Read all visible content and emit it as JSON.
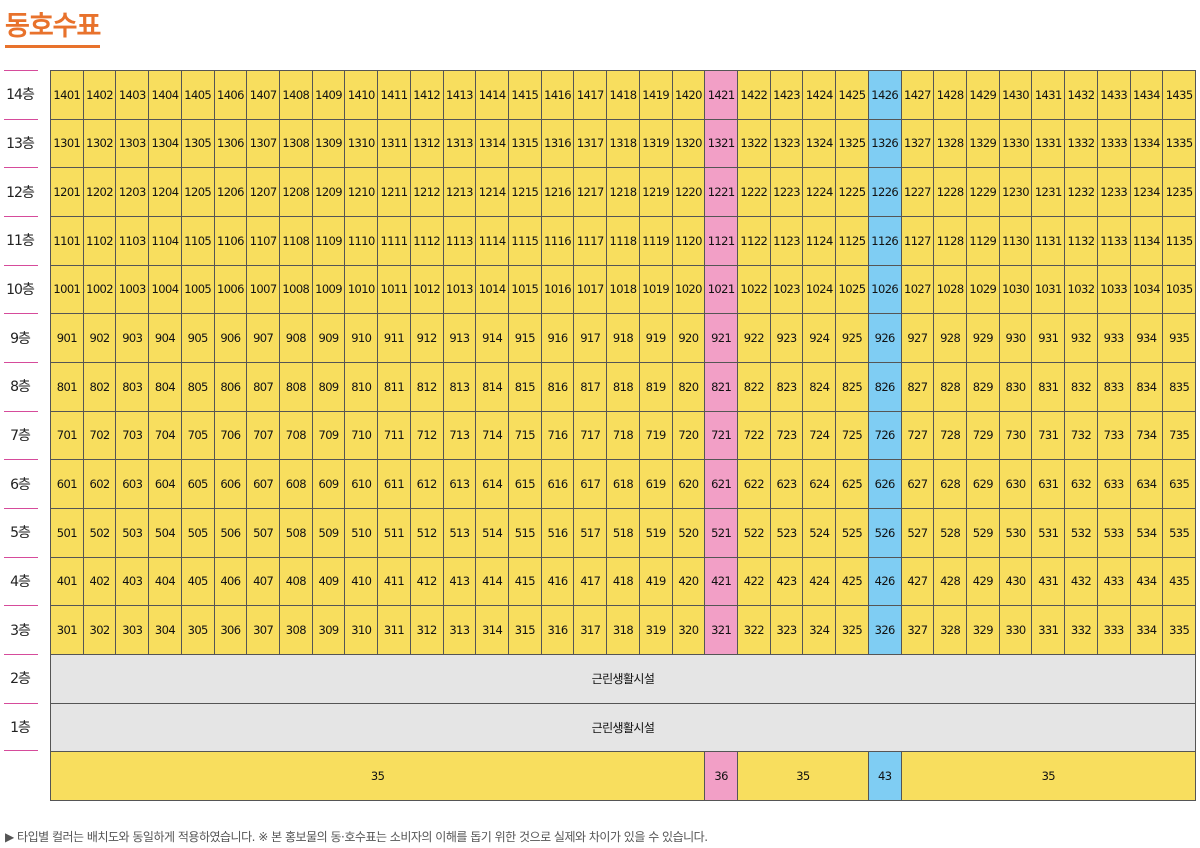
{
  "title": "동호수표",
  "colors": {
    "35": "#f8de5e",
    "36": "#f29fc6",
    "43": "#7fcdf3",
    "facility": "#e5e5e5",
    "title": "#e8722c"
  },
  "unit_floors": [
    {
      "label": "14층",
      "units": [
        "1401",
        "1402",
        "1403",
        "1404",
        "1405",
        "1406",
        "1407",
        "1408",
        "1409",
        "1410",
        "1411",
        "1412",
        "1413",
        "1414",
        "1415",
        "1416",
        "1417",
        "1418",
        "1419",
        "1420",
        "1421",
        "1422",
        "1423",
        "1424",
        "1425",
        "1426",
        "1427",
        "1428",
        "1429",
        "1430",
        "1431",
        "1432",
        "1433",
        "1434",
        "1435"
      ]
    },
    {
      "label": "13층",
      "units": [
        "1301",
        "1302",
        "1303",
        "1304",
        "1305",
        "1306",
        "1307",
        "1308",
        "1309",
        "1310",
        "1311",
        "1312",
        "1313",
        "1314",
        "1315",
        "1316",
        "1317",
        "1318",
        "1319",
        "1320",
        "1321",
        "1322",
        "1323",
        "1324",
        "1325",
        "1326",
        "1327",
        "1328",
        "1329",
        "1330",
        "1331",
        "1332",
        "1333",
        "1334",
        "1335"
      ]
    },
    {
      "label": "12층",
      "units": [
        "1201",
        "1202",
        "1203",
        "1204",
        "1205",
        "1206",
        "1207",
        "1208",
        "1209",
        "1210",
        "1211",
        "1212",
        "1213",
        "1214",
        "1215",
        "1216",
        "1217",
        "1218",
        "1219",
        "1220",
        "1221",
        "1222",
        "1223",
        "1224",
        "1225",
        "1226",
        "1227",
        "1228",
        "1229",
        "1230",
        "1231",
        "1232",
        "1233",
        "1234",
        "1235"
      ]
    },
    {
      "label": "11층",
      "units": [
        "1101",
        "1102",
        "1103",
        "1104",
        "1105",
        "1106",
        "1107",
        "1108",
        "1109",
        "1110",
        "1111",
        "1112",
        "1113",
        "1114",
        "1115",
        "1116",
        "1117",
        "1118",
        "1119",
        "1120",
        "1121",
        "1122",
        "1123",
        "1124",
        "1125",
        "1126",
        "1127",
        "1128",
        "1129",
        "1130",
        "1131",
        "1132",
        "1133",
        "1134",
        "1135"
      ]
    },
    {
      "label": "10층",
      "units": [
        "1001",
        "1002",
        "1003",
        "1004",
        "1005",
        "1006",
        "1007",
        "1008",
        "1009",
        "1010",
        "1011",
        "1012",
        "1013",
        "1014",
        "1015",
        "1016",
        "1017",
        "1018",
        "1019",
        "1020",
        "1021",
        "1022",
        "1023",
        "1024",
        "1025",
        "1026",
        "1027",
        "1028",
        "1029",
        "1030",
        "1031",
        "1032",
        "1033",
        "1034",
        "1035"
      ]
    },
    {
      "label": "9층",
      "units": [
        "901",
        "902",
        "903",
        "904",
        "905",
        "906",
        "907",
        "908",
        "909",
        "910",
        "911",
        "912",
        "913",
        "914",
        "915",
        "916",
        "917",
        "918",
        "919",
        "920",
        "921",
        "922",
        "923",
        "924",
        "925",
        "926",
        "927",
        "928",
        "929",
        "930",
        "931",
        "932",
        "933",
        "934",
        "935"
      ]
    },
    {
      "label": "8층",
      "units": [
        "801",
        "802",
        "803",
        "804",
        "805",
        "806",
        "807",
        "808",
        "809",
        "810",
        "811",
        "812",
        "813",
        "814",
        "815",
        "816",
        "817",
        "818",
        "819",
        "820",
        "821",
        "822",
        "823",
        "824",
        "825",
        "826",
        "827",
        "828",
        "829",
        "830",
        "831",
        "832",
        "833",
        "834",
        "835"
      ]
    },
    {
      "label": "7층",
      "units": [
        "701",
        "702",
        "703",
        "704",
        "705",
        "706",
        "707",
        "708",
        "709",
        "710",
        "711",
        "712",
        "713",
        "714",
        "715",
        "716",
        "717",
        "718",
        "719",
        "720",
        "721",
        "722",
        "723",
        "724",
        "725",
        "726",
        "727",
        "728",
        "729",
        "730",
        "731",
        "732",
        "733",
        "734",
        "735"
      ]
    },
    {
      "label": "6층",
      "units": [
        "601",
        "602",
        "603",
        "604",
        "605",
        "606",
        "607",
        "608",
        "609",
        "610",
        "611",
        "612",
        "613",
        "614",
        "615",
        "616",
        "617",
        "618",
        "619",
        "620",
        "621",
        "622",
        "623",
        "624",
        "625",
        "626",
        "627",
        "628",
        "629",
        "630",
        "631",
        "632",
        "633",
        "634",
        "635"
      ]
    },
    {
      "label": "5층",
      "units": [
        "501",
        "502",
        "503",
        "504",
        "505",
        "506",
        "507",
        "508",
        "509",
        "510",
        "511",
        "512",
        "513",
        "514",
        "515",
        "516",
        "517",
        "518",
        "519",
        "520",
        "521",
        "522",
        "523",
        "524",
        "525",
        "526",
        "527",
        "528",
        "529",
        "530",
        "531",
        "532",
        "533",
        "534",
        "535"
      ]
    },
    {
      "label": "4층",
      "units": [
        "401",
        "402",
        "403",
        "404",
        "405",
        "406",
        "407",
        "408",
        "409",
        "410",
        "411",
        "412",
        "413",
        "414",
        "415",
        "416",
        "417",
        "418",
        "419",
        "420",
        "421",
        "422",
        "423",
        "424",
        "425",
        "426",
        "427",
        "428",
        "429",
        "430",
        "431",
        "432",
        "433",
        "434",
        "435"
      ]
    },
    {
      "label": "3층",
      "units": [
        "301",
        "302",
        "303",
        "304",
        "305",
        "306",
        "307",
        "308",
        "309",
        "310",
        "311",
        "312",
        "313",
        "314",
        "315",
        "316",
        "317",
        "318",
        "319",
        "320",
        "321",
        "322",
        "323",
        "324",
        "325",
        "326",
        "327",
        "328",
        "329",
        "330",
        "331",
        "332",
        "333",
        "334",
        "335"
      ]
    }
  ],
  "facility_floors": [
    {
      "label": "2층",
      "text": "근린생활시설"
    },
    {
      "label": "1층",
      "text": "근린생활시설"
    }
  ],
  "column_types": [
    "35",
    "35",
    "35",
    "35",
    "35",
    "35",
    "35",
    "35",
    "35",
    "35",
    "35",
    "35",
    "35",
    "35",
    "35",
    "35",
    "35",
    "35",
    "35",
    "35",
    "36",
    "35",
    "35",
    "35",
    "35",
    "43",
    "35",
    "35",
    "35",
    "35",
    "35",
    "35",
    "35",
    "35",
    "35"
  ],
  "footer": "▶ 타입별 컬러는 배치도와 동일하게 적용하였습니다.  ※ 본 홍보물의 동·호수표는 소비자의 이해를 돕기 위한 것으로 실제와 차이가 있을 수 있습니다."
}
